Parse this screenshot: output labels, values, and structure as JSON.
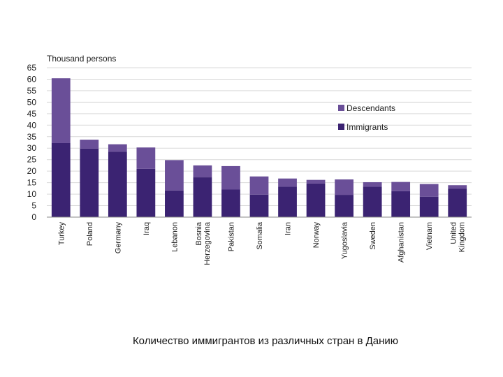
{
  "caption": "Количество иммигрантов из различных стран в Данию",
  "chart_data": {
    "type": "bar",
    "stacked": true,
    "unit_label": "Thousand persons",
    "ylim": [
      0,
      65
    ],
    "yticks": [
      0,
      5,
      10,
      15,
      20,
      25,
      30,
      35,
      40,
      45,
      50,
      55,
      60,
      65
    ],
    "grid": true,
    "legend_position": "right",
    "categories": [
      [
        "Turkey"
      ],
      [
        "Poland"
      ],
      [
        "Germany"
      ],
      [
        "Iraq"
      ],
      [
        "Lebanon"
      ],
      [
        "Bosnia",
        "Herzegovina"
      ],
      [
        "Pakistan"
      ],
      [
        "Somalia"
      ],
      [
        "Iran"
      ],
      [
        "Norway"
      ],
      [
        "Yugoslavia"
      ],
      [
        "Sweden"
      ],
      [
        "Afghanistan"
      ],
      [
        "Vietnam"
      ],
      [
        "United",
        "Kingdom"
      ]
    ],
    "series": [
      {
        "name": "Immigrants",
        "color": "#3b2372",
        "values": [
          32.2,
          29.8,
          28.5,
          21.0,
          11.6,
          17.3,
          12.0,
          9.8,
          13.2,
          14.6,
          9.7,
          13.2,
          11.3,
          8.9,
          12.3
        ]
      },
      {
        "name": "Descendants",
        "color": "#6a4f98",
        "values": [
          28.2,
          3.9,
          3.2,
          9.3,
          13.2,
          5.2,
          10.2,
          7.9,
          3.6,
          1.6,
          6.7,
          2.0,
          4.0,
          5.5,
          1.6
        ]
      }
    ],
    "legend_order": [
      "Descendants",
      "Immigrants"
    ]
  }
}
